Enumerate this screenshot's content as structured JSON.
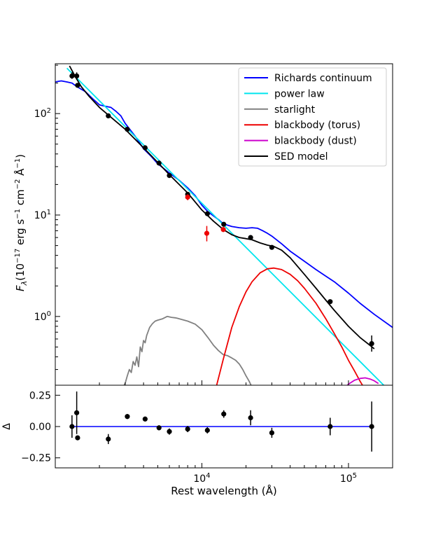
{
  "chart_data": [
    {
      "panel": "top",
      "type": "line",
      "xscale": "log",
      "yscale": "log",
      "xlim": [
        1000,
        200000
      ],
      "ylim": [
        0.21,
        310
      ],
      "ylabel": "F_λ(10^−17 erg s^−1 cm^−2 Å^−1)",
      "ytick_labels": [
        "10^2",
        "10^1",
        "10^0"
      ],
      "legend": {
        "location": "top-right",
        "entries": [
          {
            "label": "Richards continuum",
            "color": "#0000ff"
          },
          {
            "label": "power law",
            "color": "#00e5ee"
          },
          {
            "label": "starlight",
            "color": "#808080"
          },
          {
            "label": "blackbody (torus)",
            "color": "#ee0000"
          },
          {
            "label": "blackbody (dust)",
            "color": "#cc00cc"
          },
          {
            "label": "SED model",
            "color": "#000000"
          }
        ]
      },
      "series": [
        {
          "name": "Richards continuum",
          "color": "#0000ff",
          "x": [
            1000,
            1050,
            1100,
            1200,
            1300,
            1400,
            1600,
            1800,
            2000,
            2200,
            2400,
            2600,
            2800,
            3000,
            3500,
            4000,
            4500,
            5000,
            6000,
            7000,
            8000,
            9000,
            10000,
            11000,
            12000,
            13000,
            14000,
            16000,
            18000,
            20000,
            22000,
            24000,
            26000,
            28000,
            30000,
            35000,
            40000,
            50000,
            60000,
            70000,
            80000,
            100000,
            120000,
            150000,
            200000
          ],
          "y": [
            205,
            208,
            210,
            205,
            200,
            185,
            165,
            140,
            122,
            118,
            115,
            105,
            95,
            80,
            60,
            45,
            38,
            32,
            26,
            22,
            18.5,
            15.5,
            12.5,
            10.8,
            9.8,
            9.0,
            8.2,
            7.7,
            7.5,
            7.4,
            7.5,
            7.4,
            7.0,
            6.6,
            6.2,
            5.2,
            4.4,
            3.5,
            2.9,
            2.5,
            2.2,
            1.7,
            1.35,
            1.05,
            0.78
          ]
        },
        {
          "name": "power law",
          "color": "#00e5ee",
          "x": [
            1200,
            180000
          ],
          "y": [
            280,
            0.2
          ]
        },
        {
          "name": "starlight",
          "color": "#808080",
          "x": [
            2900,
            3000,
            3100,
            3200,
            3300,
            3400,
            3500,
            3600,
            3700,
            3800,
            3900,
            4000,
            4100,
            4200,
            4400,
            4600,
            4800,
            5000,
            5400,
            5800,
            6200,
            6600,
            7000,
            8000,
            9000,
            10000,
            11000,
            12000,
            13000,
            14000,
            15000,
            16000,
            17000,
            18000,
            19000,
            20000,
            21000,
            22000
          ],
          "y": [
            0.2,
            0.22,
            0.26,
            0.3,
            0.28,
            0.36,
            0.33,
            0.4,
            0.32,
            0.5,
            0.45,
            0.58,
            0.55,
            0.65,
            0.78,
            0.85,
            0.9,
            0.92,
            0.95,
            1.0,
            0.98,
            0.97,
            0.95,
            0.9,
            0.84,
            0.74,
            0.62,
            0.52,
            0.46,
            0.42,
            0.41,
            0.39,
            0.37,
            0.34,
            0.3,
            0.26,
            0.23,
            0.2
          ]
        },
        {
          "name": "blackbody (torus)",
          "color": "#ee0000",
          "x": [
            12500,
            14000,
            16000,
            18000,
            20000,
            22000,
            25000,
            28000,
            31000,
            35000,
            40000,
            45000,
            50000,
            60000,
            70000,
            80000,
            90000,
            100000,
            110000,
            120000,
            130000
          ],
          "y": [
            0.2,
            0.38,
            0.78,
            1.25,
            1.75,
            2.2,
            2.7,
            2.95,
            3.0,
            2.9,
            2.6,
            2.25,
            1.9,
            1.35,
            0.95,
            0.68,
            0.5,
            0.37,
            0.29,
            0.23,
            0.19
          ]
        },
        {
          "name": "blackbody (dust)",
          "color": "#cc00cc",
          "x": [
            95000,
            100000,
            110000,
            120000,
            130000,
            140000,
            150000,
            160000
          ],
          "y": [
            0.2,
            0.215,
            0.235,
            0.245,
            0.248,
            0.242,
            0.232,
            0.218
          ]
        },
        {
          "name": "SED model",
          "color": "#000000",
          "x": [
            1250,
            1350,
            1500,
            1700,
            2000,
            2400,
            3000,
            4000,
            5000,
            6000,
            8000,
            10000,
            12000,
            14000,
            16000,
            18000,
            20000,
            22000,
            25000,
            28000,
            31000,
            35000,
            40000,
            50000,
            60000,
            70000,
            80000,
            100000,
            120000,
            140000,
            150000
          ],
          "y": [
            295,
            240,
            185,
            148,
            115,
            92,
            70,
            46,
            33,
            25,
            16.5,
            11.2,
            8.7,
            7.2,
            6.4,
            6.0,
            5.85,
            5.7,
            5.3,
            5.05,
            4.9,
            4.5,
            3.8,
            2.6,
            1.9,
            1.45,
            1.15,
            0.8,
            0.62,
            0.52,
            0.48
          ]
        }
      ],
      "points": [
        {
          "x": 1300,
          "y": 235,
          "yerr_lo": 220,
          "yerr_hi": 255,
          "color": "#000000"
        },
        {
          "x": 1400,
          "y": 235,
          "yerr_lo": 215,
          "yerr_hi": 255,
          "color": "#000000"
        },
        {
          "x": 1420,
          "y": 190,
          "yerr_lo": 185,
          "yerr_hi": 195,
          "color": "#000000"
        },
        {
          "x": 2300,
          "y": 95,
          "yerr_lo": 90,
          "yerr_hi": 100,
          "color": "#000000"
        },
        {
          "x": 3100,
          "y": 70,
          "yerr_lo": 67,
          "yerr_hi": 73,
          "color": "#000000"
        },
        {
          "x": 4100,
          "y": 46,
          "yerr_lo": 44.5,
          "yerr_hi": 47.5,
          "color": "#000000"
        },
        {
          "x": 5100,
          "y": 32.5,
          "yerr_lo": 31.5,
          "yerr_hi": 33.5,
          "color": "#000000"
        },
        {
          "x": 6000,
          "y": 24.5,
          "yerr_lo": 23.5,
          "yerr_hi": 25.5,
          "color": "#000000"
        },
        {
          "x": 8000,
          "y": 16,
          "yerr_lo": 15.2,
          "yerr_hi": 16.8,
          "color": "#000000"
        },
        {
          "x": 8000,
          "y": 15,
          "yerr_lo": 14,
          "yerr_hi": 16,
          "color": "#ee0000"
        },
        {
          "x": 10800,
          "y": 6.6,
          "yerr_lo": 5.5,
          "yerr_hi": 7.8,
          "color": "#ee0000"
        },
        {
          "x": 10900,
          "y": 10.3,
          "yerr_lo": 9.9,
          "yerr_hi": 10.7,
          "color": "#000000"
        },
        {
          "x": 14000,
          "y": 7.2,
          "yerr_lo": 6.8,
          "yerr_hi": 7.6,
          "color": "#ee0000"
        },
        {
          "x": 14100,
          "y": 8.1,
          "yerr_lo": 7.7,
          "yerr_hi": 8.5,
          "color": "#000000"
        },
        {
          "x": 21500,
          "y": 6.0,
          "yerr_lo": 5.8,
          "yerr_hi": 6.2,
          "color": "#000000"
        },
        {
          "x": 30000,
          "y": 4.8,
          "yerr_lo": 4.6,
          "yerr_hi": 5.0,
          "color": "#000000"
        },
        {
          "x": 75000,
          "y": 1.4,
          "yerr_lo": 1.33,
          "yerr_hi": 1.47,
          "color": "#000000"
        },
        {
          "x": 144000,
          "y": 0.54,
          "yerr_lo": 0.45,
          "yerr_hi": 0.65,
          "color": "#000000"
        }
      ]
    },
    {
      "panel": "bottom",
      "type": "scatter",
      "xscale": "log",
      "xlim": [
        1000,
        200000
      ],
      "ylim": [
        -0.33,
        0.33
      ],
      "ylabel": "Δ",
      "xlabel": "Rest wavelength (Å)",
      "xtick_labels": [
        "10^4",
        "10^5"
      ],
      "ytick_labels": [
        "0.25",
        "0.00",
        "−0.25"
      ],
      "reference_line": {
        "y": 0,
        "x_from": 1300,
        "x_to": 144000,
        "color": "#0000ff"
      },
      "points": [
        {
          "x": 1300,
          "y": 0.0,
          "err": 0.09
        },
        {
          "x": 1400,
          "y": 0.11,
          "err": 0.17
        },
        {
          "x": 1420,
          "y": -0.09,
          "err": 0.01
        },
        {
          "x": 2300,
          "y": -0.1,
          "err": 0.04
        },
        {
          "x": 3100,
          "y": 0.08,
          "err": 0.02
        },
        {
          "x": 4100,
          "y": 0.06,
          "err": 0.015
        },
        {
          "x": 5100,
          "y": -0.01,
          "err": 0.02
        },
        {
          "x": 6000,
          "y": -0.04,
          "err": 0.025
        },
        {
          "x": 8000,
          "y": -0.02,
          "err": 0.025
        },
        {
          "x": 10900,
          "y": -0.03,
          "err": 0.025
        },
        {
          "x": 14100,
          "y": 0.1,
          "err": 0.03
        },
        {
          "x": 21500,
          "y": 0.07,
          "err": 0.06
        },
        {
          "x": 30000,
          "y": -0.05,
          "err": 0.04
        },
        {
          "x": 75000,
          "y": 0.0,
          "err": 0.07
        },
        {
          "x": 144000,
          "y": 0.0,
          "err": 0.2
        }
      ]
    }
  ]
}
